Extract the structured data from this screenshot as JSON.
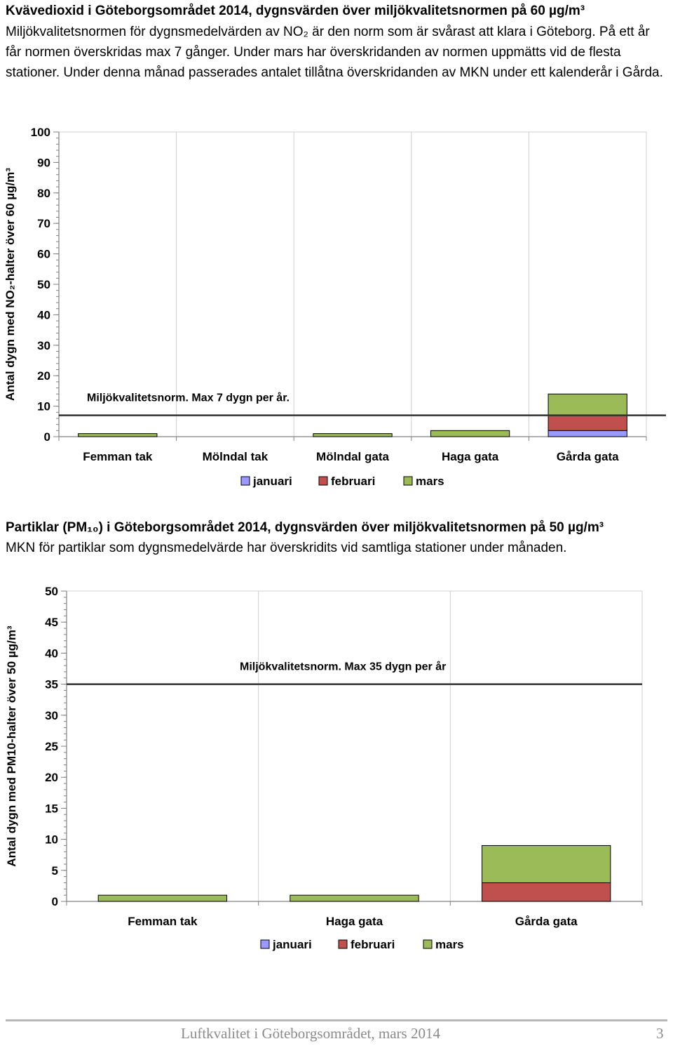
{
  "section1": {
    "title": "Kvävedioxid i Göteborgsområdet 2014, dygnsvärden över miljökvalitetsnormen på 60 µg/m³",
    "body": "Miljökvalitetsnormen för dygnsmedelvärden av NO₂ är den norm som är svårast att klara i Göteborg. På ett år får normen överskridas max 7 gånger. Under mars har överskridanden av normen uppmätts vid de flesta stationer. Under denna månad passerades antalet tillåtna överskridanden av MKN under ett kalenderår i Gårda."
  },
  "section2": {
    "title": "Partiklar (PM₁₀) i Göteborgsområdet 2014, dygnsvärden över miljökvalitetsnormen på 50 µg/m³",
    "body": "MKN för partiklar som dygnsmedelvärde har överskridits vid samtliga stationer under månaden."
  },
  "footer": {
    "text": "Luftkvalitet i Göteborgsområdet, mars 2014",
    "page": "3"
  },
  "chart_data": [
    {
      "type": "bar",
      "stacked": true,
      "ylabel": "Antal dygn med NO₂-halter över 60 µg/m³",
      "ylim": [
        0,
        100
      ],
      "yticks": [
        0,
        10,
        20,
        30,
        40,
        50,
        60,
        70,
        80,
        90,
        100
      ],
      "categories": [
        "Femman tak",
        "Mölndal tak",
        "Mölndal gata",
        "Haga gata",
        "Gårda gata"
      ],
      "series": [
        {
          "name": "januari",
          "color": "#9999ff",
          "values": [
            0,
            0,
            0,
            0,
            2
          ]
        },
        {
          "name": "februari",
          "color": "#c0504d",
          "values": [
            0,
            0,
            0,
            0,
            5
          ]
        },
        {
          "name": "mars",
          "color": "#9bbb59",
          "values": [
            1,
            0,
            1,
            2,
            7
          ]
        }
      ],
      "reference_line": {
        "value": 7,
        "label": "Miljökvalitetsnorm. Max 7 dygn per år."
      },
      "grid": true,
      "legend": "bottom"
    },
    {
      "type": "bar",
      "stacked": true,
      "ylabel": "Antal dygn med PM10-halter över 50 µg/m³",
      "ylim": [
        0,
        50
      ],
      "yticks": [
        0,
        5,
        10,
        15,
        20,
        25,
        30,
        35,
        40,
        45,
        50
      ],
      "categories": [
        "Femman tak",
        "Haga gata",
        "Gårda gata"
      ],
      "series": [
        {
          "name": "januari",
          "color": "#9999ff",
          "values": [
            0,
            0,
            0
          ]
        },
        {
          "name": "februari",
          "color": "#c0504d",
          "values": [
            0,
            0,
            3
          ]
        },
        {
          "name": "mars",
          "color": "#9bbb59",
          "values": [
            1,
            1,
            6
          ]
        }
      ],
      "reference_line": {
        "value": 35,
        "label": "Miljökvalitetsnorm. Max 35 dygn per år"
      },
      "grid": true,
      "legend": "bottom"
    }
  ]
}
